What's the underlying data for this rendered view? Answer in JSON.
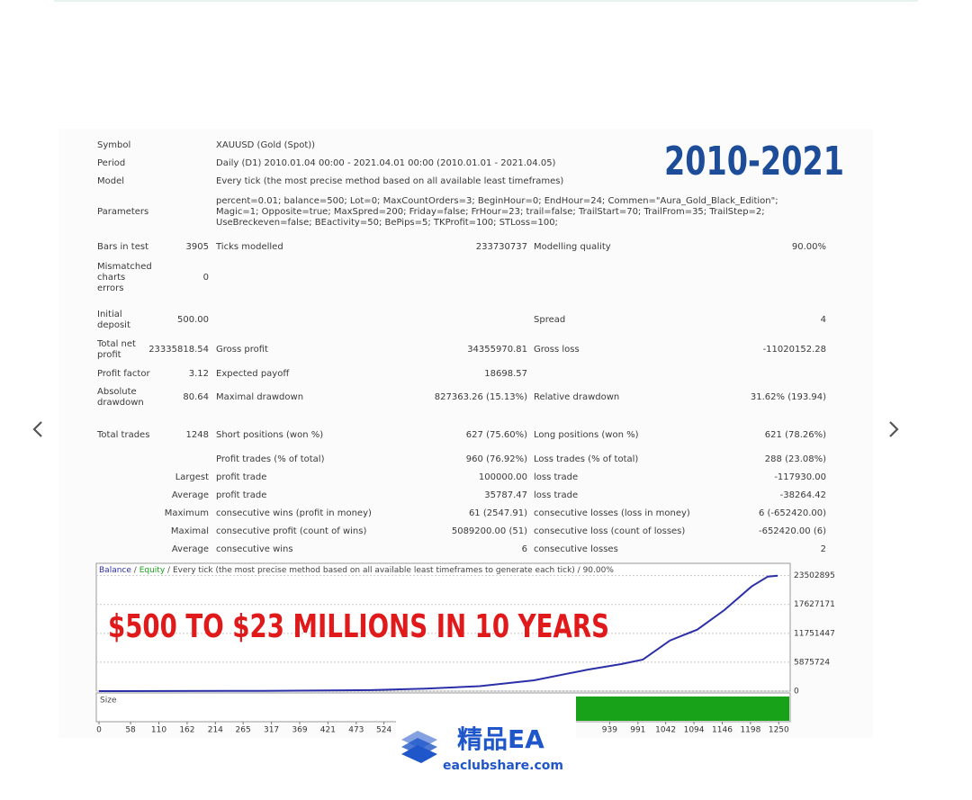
{
  "report": {
    "overlay_title": "2010-2021",
    "info": [
      [
        "Symbol",
        "XAUUSD (Gold (Spot))"
      ],
      [
        "Period",
        "Daily (D1) 2010.01.04 00:00 - 2021.04.01 00:00 (2010.01.01 - 2021.04.05)"
      ],
      [
        "Model",
        "Every tick (the most precise method based on all available least timeframes)"
      ],
      [
        "Parameters",
        "percent=0.01; balance=500; Lot=0; MaxCountOrders=3; BeginHour=0; EndHour=24; Commen=\"Aura_Gold_Black_Edition\"; Magic=1; Opposite=true; MaxSpred=200; Friday=false; FrHour=23; trail=false; TrailStart=70; TrailFrom=35; TrailStep=2; UseBreckeven=false; BEactivity=50; BePips=5; TKProfit=100; STLoss=100;"
      ]
    ],
    "rows": [
      [
        "Bars in test",
        "3905",
        "Ticks modelled",
        "233730737",
        "Modelling quality",
        "90.00%"
      ],
      [
        "Mismatched charts errors",
        "0",
        null,
        null,
        null,
        null
      ],
      [
        "Initial deposit",
        "500.00",
        null,
        null,
        "Spread",
        "4"
      ],
      [
        "Total net profit",
        "23335818.54",
        "Gross profit",
        "34355970.81",
        "Gross loss",
        "-11020152.28"
      ],
      [
        "Profit factor",
        "3.12",
        "Expected payoff",
        "18698.57",
        null,
        null
      ],
      [
        "Absolute drawdown",
        "80.64",
        "Maximal drawdown",
        "827363.26 (15.13%)",
        "Relative drawdown",
        "31.62% (193.94)"
      ],
      [
        "Total trades",
        "1248",
        "Short positions (won %)",
        "627 (75.60%)",
        "Long positions (won %)",
        "621 (78.26%)"
      ],
      [
        null,
        null,
        "Profit trades (% of total)",
        "960 (76.92%)",
        "Loss trades (% of total)",
        "288 (23.08%)"
      ],
      [
        null,
        "Largest",
        "profit trade",
        "100000.00",
        "loss trade",
        "-117930.00"
      ],
      [
        null,
        "Average",
        "profit trade",
        "35787.47",
        "loss trade",
        "-38264.42"
      ],
      [
        null,
        "Maximum",
        "consecutive wins (profit in money)",
        "61 (2547.91)",
        "consecutive losses (loss in money)",
        "6 (-652420.00)"
      ],
      [
        null,
        "Maximal",
        "consecutive profit (count of wins)",
        "5089200.00 (51)",
        "consecutive loss (count of losses)",
        "-652420.00 (6)"
      ],
      [
        null,
        "Average",
        "consecutive wins",
        "6",
        "consecutive losses",
        "2"
      ]
    ]
  },
  "chart_data": {
    "type": "line",
    "separator": "/",
    "equity_label": "Equity",
    "header_rest": "Every tick (the most precise method based on all available least timeframes to generate each tick) / 90.00%",
    "annotation": "$500 TO $23 MILLIONS IN 10 YEARS",
    "size_label": "Size",
    "x": [
      0,
      300,
      500,
      600,
      700,
      800,
      900,
      960,
      1000,
      1050,
      1100,
      1150,
      1200,
      1230,
      1248
    ],
    "series": [
      {
        "name": "Balance",
        "color": "#2b2fa8",
        "values": [
          500,
          50000,
          200000,
          500000,
          1000000,
          2200000,
          4400000,
          5500000,
          6400000,
          10300000,
          12500000,
          16500000,
          21300000,
          23300000,
          23500000
        ]
      }
    ],
    "xlim": [
      -5,
      1271
    ],
    "ylim": [
      0,
      26000000
    ],
    "xticks": [
      0,
      58,
      110,
      162,
      214,
      265,
      317,
      369,
      421,
      473,
      524,
      939,
      991,
      1042,
      1094,
      1146,
      1198,
      1250
    ],
    "yticks": [
      0,
      5875724,
      11751447,
      17627171,
      23502895
    ]
  },
  "watermark": {
    "brand": "精品EA",
    "site": "eaclubshare.com"
  }
}
